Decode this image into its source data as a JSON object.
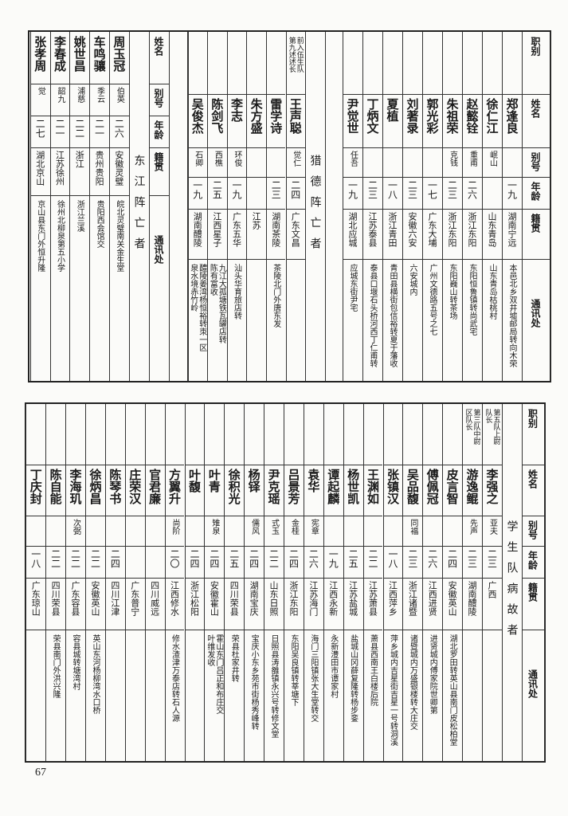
{
  "page_number": "67",
  "top_table": {
    "headers": {
      "title": "职别",
      "name": "姓名",
      "alias": "别号",
      "age": "年龄",
      "origin": "籍贯",
      "address": "通讯处"
    },
    "group1": [
      {
        "title": "",
        "name": "郑逢良",
        "alias": "",
        "age": "一九",
        "origin": "湖南宁远",
        "address": "本邑北乡双井墟邮局转向木荣"
      },
      {
        "title": "",
        "name": "徐仁江",
        "alias": "岷山",
        "age": "",
        "origin": "山东青岛",
        "address": "山东青岛枯桃村"
      },
      {
        "title": "",
        "name": "赵懿铨",
        "alias": "重甫",
        "age": "二六",
        "origin": "浙江东阳",
        "address": "东阳恒鲁镇转尚武宅"
      },
      {
        "title": "",
        "name": "朱祖荣",
        "alias": "克钱",
        "age": "二三",
        "origin": "浙江东阳",
        "address": "东阳巍山转茶场"
      },
      {
        "title": "",
        "name": "郭光彩",
        "alias": "",
        "age": "一七",
        "origin": "广东大埔",
        "address": "广州文德路五号之七"
      },
      {
        "title": "",
        "name": "刘著录",
        "alias": "",
        "age": "二三",
        "origin": "安徽六安",
        "address": "六安城内"
      },
      {
        "title": "",
        "name": "夏植",
        "alias": "",
        "age": "一八",
        "origin": "浙江青田",
        "address": "青田县横街包信裕转夏于藩收"
      },
      {
        "title": "",
        "name": "丁炳文",
        "alias": "",
        "age": "二三",
        "origin": "江苏泰县",
        "address": "泰县口堰石头桥河西丁仁甫转"
      },
      {
        "title": "",
        "name": "尹觉世",
        "alias": "任吾",
        "age": "一九",
        "origin": "湖北应城",
        "address": "应城东街尹宅"
      }
    ],
    "liede_section": {
      "label": "猎德阵亡者",
      "records": [
        {
          "title": "前入伍生队\n第九述述长",
          "name": "王声聪",
          "alias": "觉仁",
          "age": "二四",
          "origin": "广东文昌",
          "address": ""
        },
        {
          "title": "",
          "name": "雷学诗",
          "alias": "",
          "age": "二三",
          "origin": "湖南茶陵",
          "address": "茶陵北门外唐东发"
        },
        {
          "title": "",
          "name": "朱方盛",
          "alias": "",
          "age": "",
          "origin": "江苏",
          "address": ""
        },
        {
          "title": "",
          "name": "李志",
          "alias": "环俊",
          "age": "一九",
          "origin": "广东五华",
          "address": "汕头华育旅店转"
        },
        {
          "title": "",
          "name": "陈剑飞",
          "alias": "西樵",
          "age": "二五",
          "origin": "江西星子",
          "address": "九江大孤塘铁瓦罐店转\n陈有富收"
        },
        {
          "title": "",
          "name": "吴俊杰",
          "alias": "石卿",
          "age": "一九",
          "origin": "湖南醴陵",
          "address": "醴陵姜湾杨恒裕转朿一区\n泉水境赤竹岭"
        }
      ]
    }
  },
  "dongjiang_section": {
    "headers": {
      "name": "姓名",
      "alias": "别号",
      "age": "年龄",
      "origin": "籍贯",
      "address": "通讯处"
    },
    "label": "东江阵亡者",
    "records": [
      {
        "name": "周玉冠",
        "alias": "伯英",
        "age": "二六",
        "origin": "安徽灵璧",
        "address": "皖北灵璧南关金生堂"
      },
      {
        "name": "车鸣骧",
        "alias": "季云",
        "age": "二一",
        "origin": "贵州贵阳",
        "address": "贵阳西会馆交"
      },
      {
        "name": "姚世昌",
        "alias": "浦慈",
        "age": "二二",
        "origin": "浙江",
        "address": "浙江兰溪"
      },
      {
        "name": "李春成",
        "alias": "韶九",
        "age": "二一",
        "origin": "江苏徐州",
        "address": "徐州北柳泉第五小学"
      },
      {
        "name": "张孝周",
        "alias": "觉",
        "age": "二七",
        "origin": "湖北京山",
        "address": "京山县东门外恒升隆"
      }
    ]
  },
  "student_section": {
    "headers": {
      "title": "职别",
      "name": "姓名",
      "alias": "别号",
      "age": "年龄",
      "origin": "籍贯",
      "address": "通讯处"
    },
    "label": "学生队病故者",
    "records": [
      {
        "title": "第五队上尉\n队长",
        "name": "李强之",
        "alias": "亚夫",
        "age": "二三",
        "origin": "广西",
        "address": ""
      },
      {
        "title": "第三队中尉\n区队长",
        "name": "游逸鲲",
        "alias": "先声",
        "age": "二三",
        "origin": "湖南醴陵",
        "address": ""
      },
      {
        "title": "",
        "name": "皮言智",
        "alias": "",
        "age": "二四",
        "origin": "安徽英山",
        "address": "湖北罗田转英山县南门皮松柏堂"
      },
      {
        "title": "",
        "name": "傅佩冠",
        "alias": "",
        "age": "二六",
        "origin": "江西进贤",
        "address": "进贤城内傅家院世卿第"
      },
      {
        "title": "",
        "name": "吴品馥",
        "alias": "同福",
        "age": "二三",
        "origin": "浙江诸暨",
        "address": "诸暨城内万盛银楼转大庄交"
      },
      {
        "title": "",
        "name": "张镇汉",
        "alias": "",
        "age": "一八",
        "origin": "江西萍乡",
        "address": "萍乡城内吉星街吉星一号转洞溪"
      },
      {
        "title": "",
        "name": "王渊如",
        "alias": "",
        "age": "二二",
        "origin": "江苏萧县",
        "address": "萧县西南王白楼后院"
      },
      {
        "title": "",
        "name": "杨世凯",
        "alias": "",
        "age": "二五",
        "origin": "江苏盐城",
        "address": "盐城山冈薛复隆转杨步銮"
      },
      {
        "title": "",
        "name": "谭起麟",
        "alias": "",
        "age": "一九",
        "origin": "江西永新",
        "address": "永新澧田市谭家村"
      },
      {
        "title": "",
        "name": "袁华",
        "alias": "宪章",
        "age": "二六",
        "origin": "江苏海门",
        "address": "海门三阳镇张大生堂转交"
      },
      {
        "title": "",
        "name": "吕景芳",
        "alias": "金桂",
        "age": "二四",
        "origin": "浙江东阳",
        "address": "东阳吴良镇转莘塘下"
      },
      {
        "title": "",
        "name": "尹克瑶",
        "alias": "式玉",
        "age": "二二",
        "origin": "山东日照",
        "address": "日照县涛雒镇永兴号转修文堂"
      },
      {
        "title": "",
        "name": "杨铎",
        "alias": "儒风",
        "age": "二四",
        "origin": "湖南宝庆",
        "address": "宝庆小东乡苑市街杨秀峰转"
      },
      {
        "title": "",
        "name": "徐积光",
        "alias": "",
        "age": "二五",
        "origin": "四川荣县",
        "address": "荣县杜家井转"
      },
      {
        "title": "",
        "name": "叶青",
        "alias": "雉泉",
        "age": "二四",
        "origin": "安徽霍山",
        "address": "霍山东门吕正和布庄交\n叶维发收"
      },
      {
        "title": "",
        "name": "叶馥",
        "alias": "",
        "age": "二四",
        "origin": "浙江松阳",
        "address": ""
      },
      {
        "title": "",
        "name": "方翼升",
        "alias": "尚阶",
        "age": "二〇",
        "origin": "江西修水",
        "address": "修水渣津万泰店转石人源"
      },
      {
        "title": "",
        "name": "官君廉",
        "alias": "",
        "age": "",
        "origin": "四川威远",
        "address": ""
      },
      {
        "title": "",
        "name": "庄荣汉",
        "alias": "",
        "age": "",
        "origin": "广东普宁",
        "address": ""
      },
      {
        "title": "",
        "name": "陈琴书",
        "alias": "",
        "age": "二四",
        "origin": "四川江津",
        "address": ""
      },
      {
        "title": "",
        "name": "徐炳昌",
        "alias": "",
        "age": "二二",
        "origin": "安徽英山",
        "address": "英山东河杨柳湾水口桥"
      },
      {
        "title": "",
        "name": "李海玑",
        "alias": "次弼",
        "age": "二二",
        "origin": "广东容县",
        "address": "容县城转塘湾村"
      },
      {
        "title": "",
        "name": "陈自能",
        "alias": "",
        "age": "二二",
        "origin": "四川荣县",
        "address": "荣县南门外洪兴隆"
      },
      {
        "title": "",
        "name": "丁庆封",
        "alias": "",
        "age": "一八",
        "origin": "广东琼山",
        "address": ""
      }
    ]
  }
}
